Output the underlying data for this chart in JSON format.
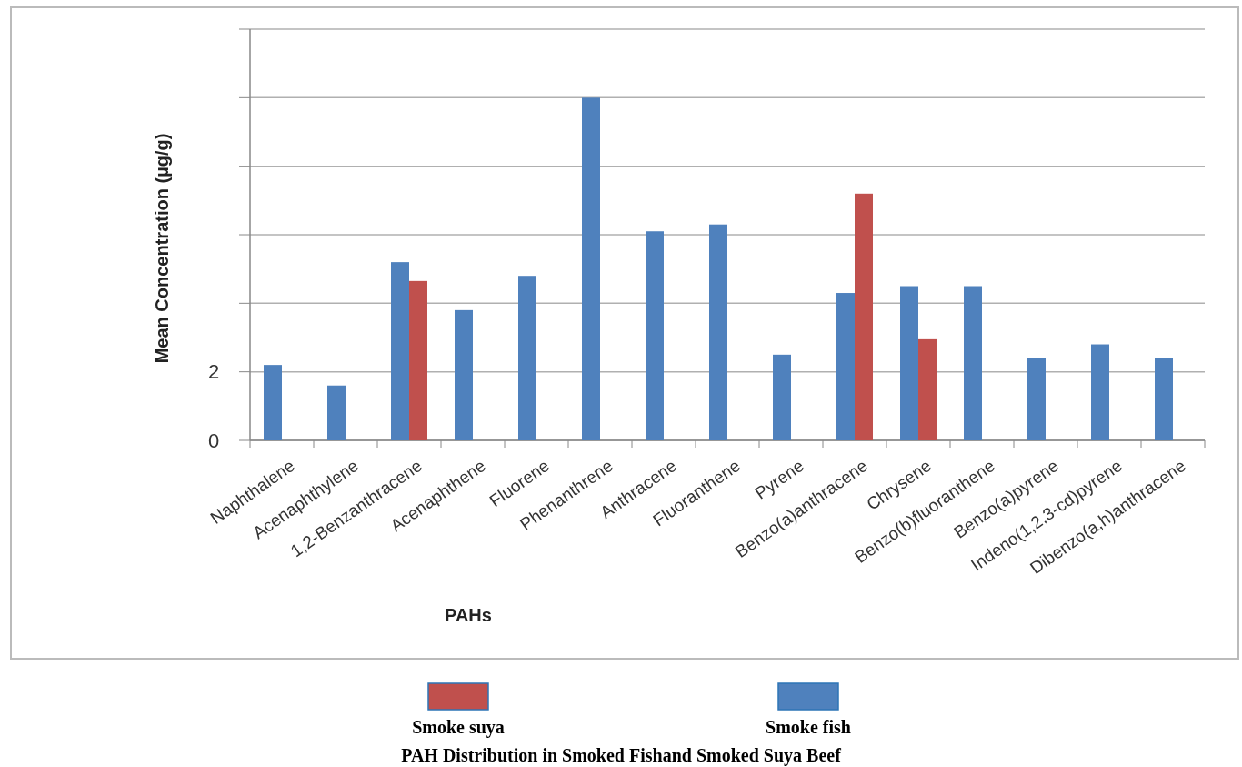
{
  "chart_data": {
    "type": "bar",
    "title": "PAH Distribution in Smoked Fishand Smoked Suya Beef",
    "xlabel": "PAHs",
    "ylabel": "Mean Concentration (µg/g)",
    "categories": [
      "Naphthalene",
      "Acenaphthylene",
      "1,2-Benzanthracene",
      "Acenaphthene",
      "Fluorene",
      "Phenanthrene",
      "Anthracene",
      "Fluoranthene",
      "Pyrene",
      "Benzo(a)anthracene",
      "Chrysene",
      "Benzo(b)fluoranthene",
      "Benzo(a)pyrene",
      "Indeno(1,2,3-cd)pyrene",
      "Dibenzo(a,h)anthracene"
    ],
    "series": [
      {
        "name": "Smoke fish",
        "color": "#4f81bd",
        "values": [
          2.2,
          1.6,
          5.2,
          3.8,
          4.8,
          10.0,
          6.1,
          6.3,
          2.5,
          4.3,
          4.5,
          4.5,
          2.4,
          2.8,
          2.4
        ]
      },
      {
        "name": "Smoke suya",
        "color": "#c0504d",
        "values": [
          null,
          null,
          4.65,
          null,
          null,
          null,
          null,
          null,
          null,
          7.2,
          2.95,
          null,
          null,
          null,
          null
        ]
      }
    ],
    "ylim": [
      0,
      12
    ],
    "yticks": [
      0,
      2,
      {
        "value": 4,
        "label": null
      },
      {
        "value": 6,
        "label": null
      },
      {
        "value": 8,
        "label": null
      },
      {
        "value": 10,
        "label": null
      },
      {
        "value": 12,
        "label": null
      }
    ],
    "grid": "y",
    "legend": "bottom"
  }
}
